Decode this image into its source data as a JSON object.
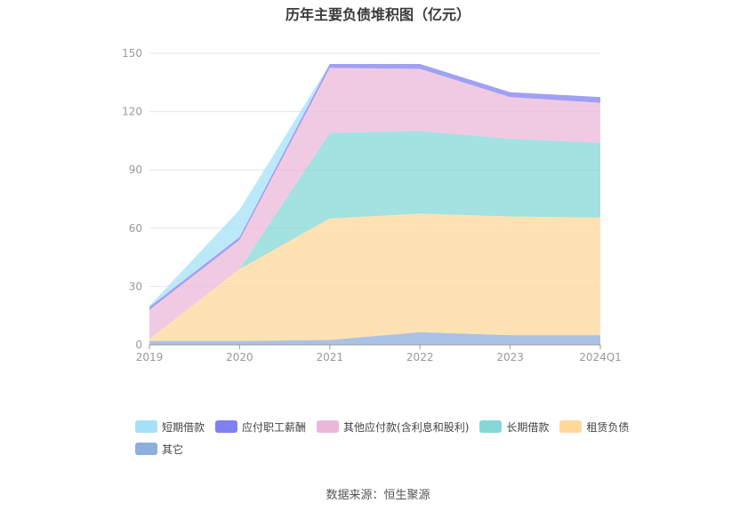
{
  "source": "数据来源：恒生聚源",
  "chart_data": {
    "type": "area",
    "stacked": true,
    "title": "历年主要负债堆积图（亿元）",
    "categories": [
      "2019",
      "2020",
      "2021",
      "2022",
      "2023",
      "2024Q1"
    ],
    "ylim": [
      0,
      150
    ],
    "yticks": [
      0,
      30,
      60,
      90,
      120,
      150
    ],
    "grid": true,
    "legend_position": "bottom",
    "series": [
      {
        "name": "其它",
        "color": "#8eaedd",
        "values": [
          2,
          2,
          2.5,
          6.5,
          5,
          5
        ]
      },
      {
        "name": "租赁负债",
        "color": "#ffd89a",
        "values": [
          1,
          37,
          62.5,
          61,
          61,
          60.5
        ]
      },
      {
        "name": "长期借款",
        "color": "#86d7d7",
        "values": [
          0,
          0,
          44,
          42.5,
          40,
          38.5
        ]
      },
      {
        "name": "其他应付款(含利息和股利)",
        "color": "#ebb8da",
        "values": [
          15,
          15,
          33.5,
          32,
          21.5,
          20.5
        ]
      },
      {
        "name": "应付职工薪酬",
        "color": "#8080f0",
        "values": [
          1.5,
          1.5,
          2,
          2.5,
          2.5,
          3
        ]
      },
      {
        "name": "短期借款",
        "color": "#a6e1f7",
        "values": [
          0.5,
          14,
          0,
          0,
          0,
          0
        ]
      }
    ],
    "legend_order": [
      "短期借款",
      "应付职工薪酬",
      "其他应付款(含利息和股利)",
      "长期借款",
      "租赁负债",
      "其它"
    ]
  }
}
